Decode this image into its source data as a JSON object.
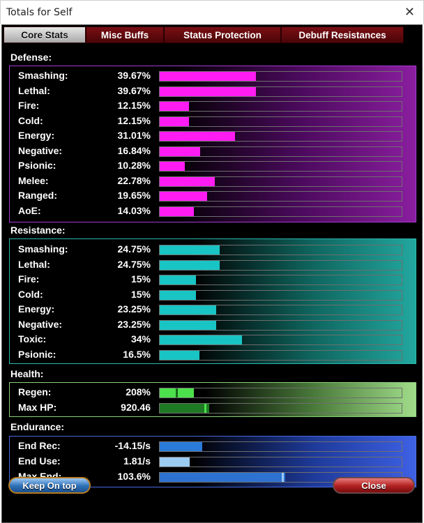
{
  "window": {
    "title": "Totals for Self",
    "close_glyph": "✕"
  },
  "tabs": [
    {
      "label": "Core Stats",
      "active": true
    },
    {
      "label": "Misc Buffs",
      "active": false
    },
    {
      "label": "Status Protection",
      "active": false
    },
    {
      "label": "Debuff Resistances",
      "active": false
    }
  ],
  "defense": {
    "label": "Defense:",
    "rows": [
      {
        "label": "Smashing:",
        "value": "39.67%",
        "fill": 39.67
      },
      {
        "label": "Lethal:",
        "value": "39.67%",
        "fill": 39.67
      },
      {
        "label": "Fire:",
        "value": "12.15%",
        "fill": 12.15
      },
      {
        "label": "Cold:",
        "value": "12.15%",
        "fill": 12.15
      },
      {
        "label": "Energy:",
        "value": "31.01%",
        "fill": 31.01
      },
      {
        "label": "Negative:",
        "value": "16.84%",
        "fill": 16.84
      },
      {
        "label": "Psionic:",
        "value": "10.28%",
        "fill": 10.28
      },
      {
        "label": "Melee:",
        "value": "22.78%",
        "fill": 22.78
      },
      {
        "label": "Ranged:",
        "value": "19.65%",
        "fill": 19.65
      },
      {
        "label": "AoE:",
        "value": "14.03%",
        "fill": 14.03
      }
    ]
  },
  "resistance": {
    "label": "Resistance:",
    "rows": [
      {
        "label": "Smashing:",
        "value": "24.75%",
        "fill": 24.75
      },
      {
        "label": "Lethal:",
        "value": "24.75%",
        "fill": 24.75
      },
      {
        "label": "Fire:",
        "value": "15%",
        "fill": 15
      },
      {
        "label": "Cold:",
        "value": "15%",
        "fill": 15
      },
      {
        "label": "Energy:",
        "value": "23.25%",
        "fill": 23.25
      },
      {
        "label": "Negative:",
        "value": "23.25%",
        "fill": 23.25
      },
      {
        "label": "Toxic:",
        "value": "34%",
        "fill": 34
      },
      {
        "label": "Psionic:",
        "value": "16.5%",
        "fill": 16.5
      }
    ]
  },
  "health": {
    "label": "Health:",
    "rows": [
      {
        "label": "Regen:",
        "value": "208%",
        "fill": 14,
        "marker": 6.5
      },
      {
        "label": "Max HP:",
        "value": "920.46",
        "fill": 20.5,
        "marker": 18.5
      }
    ]
  },
  "endurance": {
    "label": "Endurance:",
    "rows": [
      {
        "label": "End Rec:",
        "value": "-14.15/s",
        "fill": 17.5
      },
      {
        "label": "End Use:",
        "value": "1.81/s",
        "fill": 12.3
      },
      {
        "label": "Max End:",
        "value": "103.6%",
        "fill": 52,
        "marker": 50.5
      }
    ]
  },
  "colors": {
    "defense_fill": "#ff1cf2",
    "resistance_fill": "#19c4c4",
    "regen_fill": "#4ce04c",
    "regen_marker": "#1a6a1a",
    "maxhp_fill": "#1f7a24",
    "maxhp_marker": "#4ce04c",
    "endrec_fill": "#2a7ad8",
    "enduse_fill": "#9ccbf2",
    "maxend_fill": "#2d72d0",
    "maxend_marker": "#9ccbf2"
  },
  "buttons": {
    "keep_on_top": "Keep On top",
    "close": "Close"
  }
}
